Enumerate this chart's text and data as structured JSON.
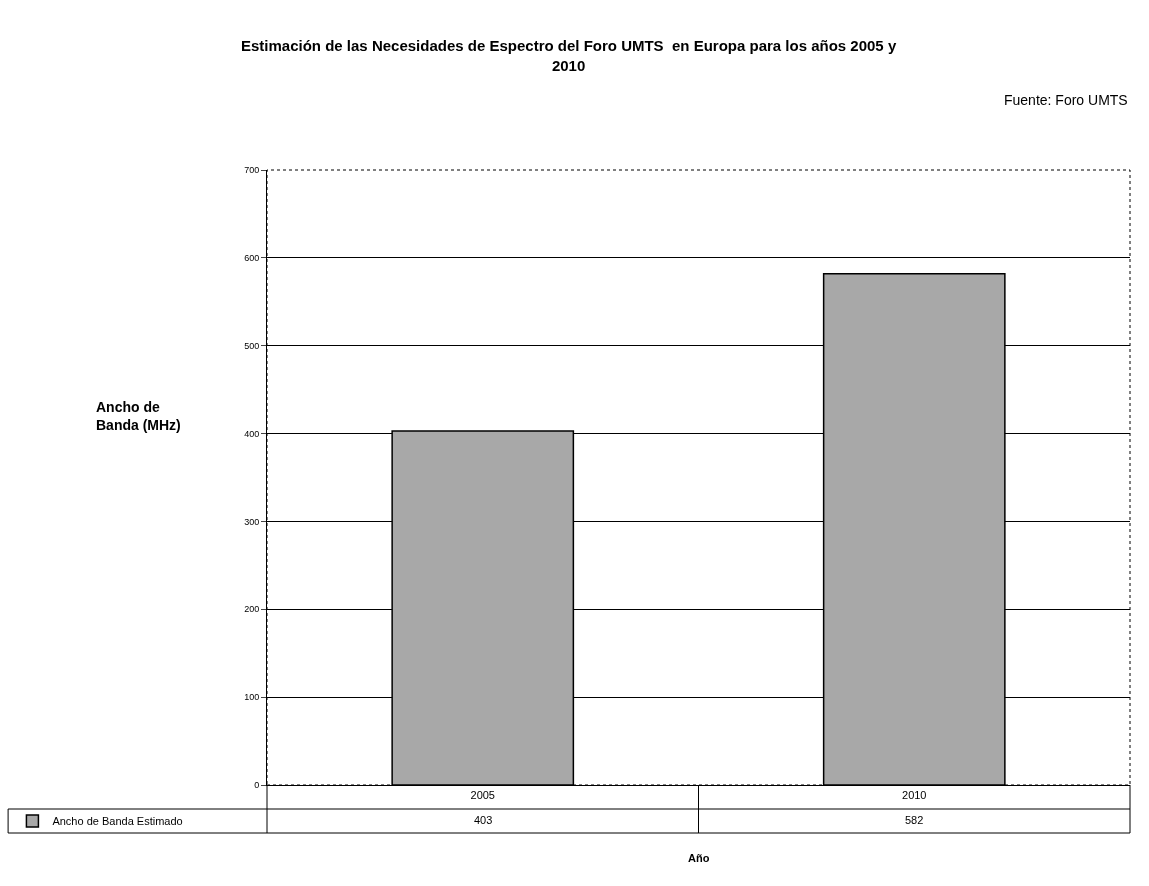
{
  "chart_data": {
    "type": "bar",
    "title": "Estimación de las Necesidades de Espectro del Foro UMTS  en Europa para los años 2005 y 2010",
    "annotations": [
      "Fuente: Foro UMTS"
    ],
    "xlabel": "Año",
    "ylabel": "Ancho de Banda (MHz)",
    "categories": [
      "2005",
      "2010"
    ],
    "series": [
      {
        "name": "Ancho de Banda Estimado",
        "color": "#a8a8a8",
        "values": [
          403,
          582
        ]
      }
    ],
    "ylim": [
      0,
      700
    ],
    "yticks": [
      0,
      100,
      200,
      300,
      400,
      500,
      600,
      700
    ],
    "grid": "y",
    "legend": "bottom left",
    "data_labels": true
  }
}
